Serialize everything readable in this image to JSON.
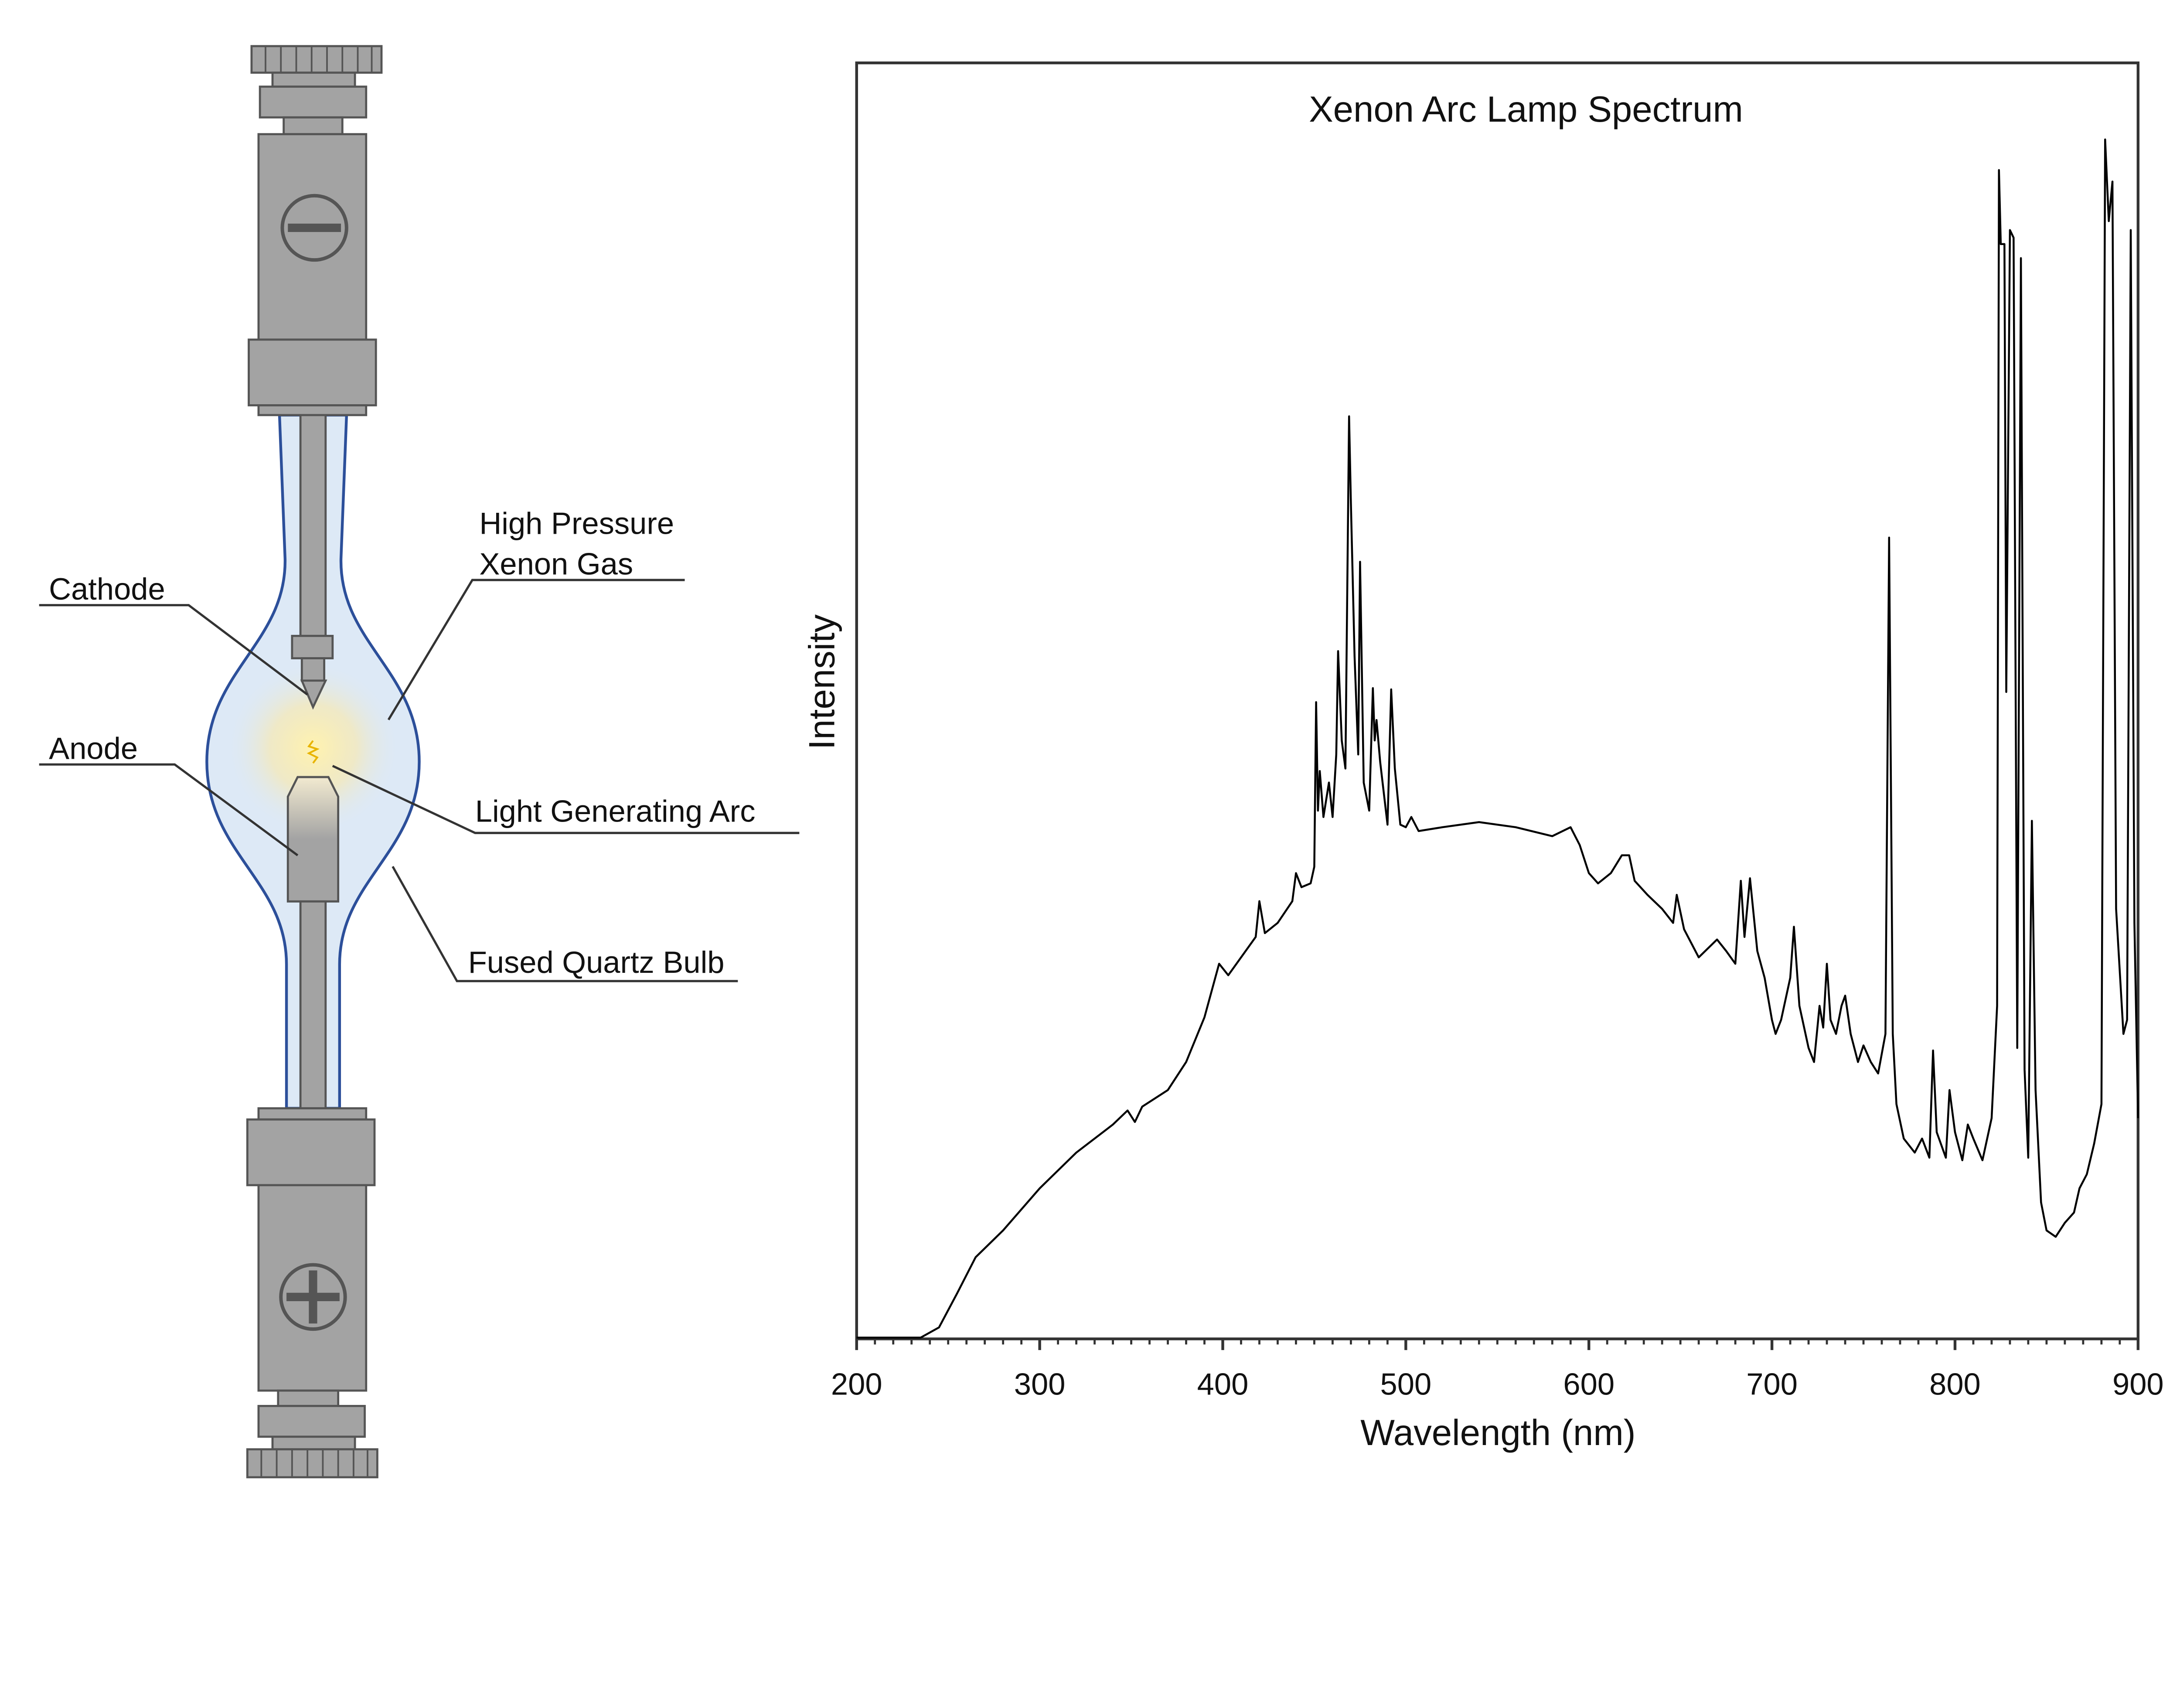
{
  "diagram": {
    "labels": {
      "cathode": "Cathode",
      "anode": "Anode",
      "gas_line1": "High Pressure",
      "gas_line2": "Xenon Gas",
      "arc": "Light Generating Arc",
      "bulb": "Fused Quartz Bulb"
    },
    "icons": {
      "top_terminal": "minus-icon",
      "bottom_terminal": "plus-icon"
    },
    "colors": {
      "metal": "#a3a3a3",
      "bulb_outline": "#2c4f9a",
      "bulb_fill": "#dde9f6",
      "arc_glow": "#fbe9a8"
    }
  },
  "chart_data": {
    "type": "line",
    "title": "Xenon Arc Lamp Spectrum",
    "xlabel": "Wavelength (nm)",
    "ylabel": "Intensity",
    "xlim": [
      200,
      900
    ],
    "ylim": [
      0,
      100
    ],
    "x_ticks": [
      "200",
      "300",
      "400",
      "500",
      "600",
      "700",
      "800",
      "900"
    ],
    "y_ticks": [],
    "grid": false,
    "line_color": "#000000",
    "series": [
      {
        "x": [
          200,
          235,
          245,
          255,
          265,
          280,
          300,
          320,
          340,
          348,
          352,
          356,
          370,
          380,
          390,
          398,
          403,
          410,
          418,
          420,
          423,
          430,
          438,
          440,
          443,
          448,
          450,
          451,
          452,
          453,
          455,
          458,
          460,
          462,
          463,
          465,
          467,
          469,
          470,
          472,
          474,
          475,
          477,
          480,
          482,
          483,
          484,
          486,
          490,
          492,
          494,
          497,
          500,
          503,
          507,
          520,
          540,
          560,
          580,
          590,
          595,
          600,
          605,
          612,
          618,
          622,
          625,
          632,
          640,
          646,
          648,
          652,
          660,
          670,
          675,
          680,
          683,
          685,
          688,
          692,
          696,
          700,
          702,
          705,
          710,
          712,
          715,
          720,
          723,
          726,
          728,
          730,
          732,
          735,
          738,
          740,
          743,
          747,
          750,
          754,
          758,
          762,
          764,
          766,
          768,
          772,
          778,
          782,
          786,
          788,
          790,
          795,
          797,
          800,
          804,
          807,
          810,
          815,
          820,
          823,
          824,
          825,
          827,
          828,
          830,
          832,
          834,
          836,
          838,
          840,
          842,
          844,
          847,
          850,
          855,
          860,
          865,
          868,
          872,
          876,
          880,
          882,
          884,
          886,
          888,
          892,
          894,
          896,
          898,
          900
        ],
        "y": [
          0.1,
          0.1,
          0.9,
          3.6,
          6.4,
          8.5,
          11.8,
          14.6,
          16.8,
          17.9,
          17.0,
          18.2,
          19.5,
          21.7,
          25.2,
          29.4,
          28.5,
          29.9,
          31.5,
          34.3,
          31.8,
          32.6,
          34.3,
          36.5,
          35.4,
          35.7,
          37.0,
          49.9,
          41.4,
          44.5,
          40.9,
          43.6,
          40.9,
          45.8,
          53.9,
          46.9,
          44.7,
          72.3,
          65.5,
          53.5,
          45.8,
          60.9,
          43.6,
          41.4,
          51.0,
          46.9,
          48.5,
          45.2,
          40.3,
          50.9,
          44.7,
          40.3,
          40.1,
          40.9,
          39.8,
          40.1,
          40.5,
          40.1,
          39.4,
          40.1,
          38.7,
          36.5,
          35.7,
          36.5,
          37.9,
          37.9,
          35.9,
          34.8,
          33.7,
          32.6,
          34.8,
          32.1,
          29.9,
          31.3,
          30.4,
          29.4,
          35.9,
          31.5,
          36.1,
          30.4,
          28.3,
          25.0,
          23.9,
          25.0,
          28.3,
          32.3,
          26.1,
          22.8,
          21.7,
          26.1,
          24.4,
          29.4,
          25.0,
          23.9,
          26.1,
          26.9,
          23.9,
          21.7,
          23.0,
          21.7,
          20.8,
          23.9,
          62.8,
          23.9,
          18.4,
          15.7,
          14.6,
          15.7,
          14.2,
          22.6,
          16.2,
          14.2,
          19.5,
          16.2,
          14.0,
          16.8,
          15.7,
          14.0,
          17.3,
          26.1,
          91.6,
          85.8,
          85.8,
          50.7,
          86.9,
          86.3,
          22.8,
          84.7,
          21.1,
          14.2,
          40.6,
          19.5,
          10.7,
          8.5,
          8.0,
          9.1,
          9.9,
          11.8,
          12.9,
          15.3,
          18.4,
          94.0,
          87.6,
          90.7,
          33.7,
          23.9,
          25.0,
          86.9,
          32.6,
          17.3
        ]
      }
    ]
  }
}
